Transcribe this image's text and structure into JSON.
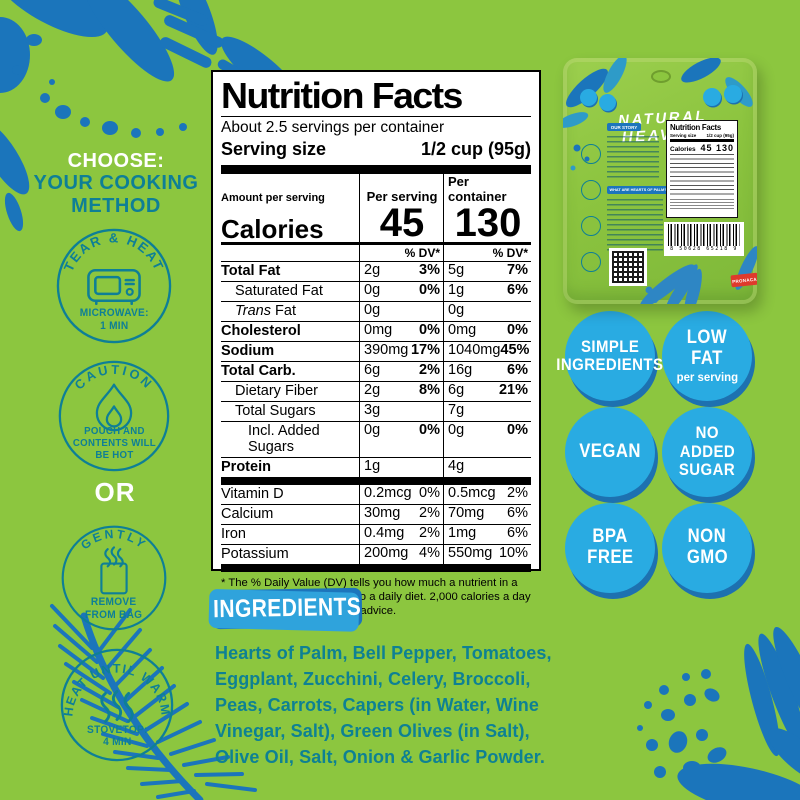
{
  "colors": {
    "background_green": "#8CC63F",
    "decor_blue": "#1B75BB",
    "teal": "#0E7F96",
    "badge_cyan": "#29ABE2",
    "badge_shadow_blue": "#1D71B0",
    "ingredients_badge_blue": "#1C75BC",
    "tag_red": "#DF3A2C"
  },
  "sidebar": {
    "choose": "CHOOSE:",
    "method1": "YOUR COOKING",
    "method2": "METHOD",
    "or": "OR",
    "steps": [
      {
        "arc": "TEAR & HEAT",
        "icon": "microwave",
        "caption": "MICROWAVE:\n1 MIN"
      },
      {
        "arc": "CAUTION",
        "icon": "flame",
        "caption": "POUCH AND\nCONTENTS WILL\nBE HOT"
      },
      {
        "arc": "GENTLY",
        "icon": "bag-steam",
        "caption": "REMOVE\nFROM BAG"
      },
      {
        "arc": "HEAT UNTIL WARM",
        "icon": "steam",
        "caption": "STOVETOP:\n4 MIN"
      }
    ]
  },
  "label": {
    "title": "Nutrition Facts",
    "servings": "About 2.5 servings per container",
    "ss_label": "Serving size",
    "ss_value": "1/2 cup (95g)",
    "amount_label": "Amount per serving",
    "col1": "Per serving",
    "col2": "Per container",
    "calories_label": "Calories",
    "cal1": "45",
    "cal2": "130",
    "dv_header": "% DV*",
    "rows": [
      {
        "name": "Total Fat",
        "b": 1,
        "i": 0,
        "a1": "2g",
        "d1": "3%",
        "a2": "5g",
        "d2": "7%"
      },
      {
        "name": "Saturated Fat",
        "b": 0,
        "i": 1,
        "a1": "0g",
        "d1": "0%",
        "a2": "1g",
        "d2": "6%"
      },
      {
        "name": "Trans Fat",
        "b": 0,
        "i": 1,
        "it": 1,
        "a1": "0g",
        "d1": "",
        "a2": "0g",
        "d2": ""
      },
      {
        "name": "Cholesterol",
        "b": 1,
        "i": 0,
        "a1": "0mg",
        "d1": "0%",
        "a2": "0mg",
        "d2": "0%"
      },
      {
        "name": "Sodium",
        "b": 1,
        "i": 0,
        "a1": "390mg",
        "d1": "17%",
        "a2": "1040mg",
        "d2": "45%"
      },
      {
        "name": "Total Carb.",
        "b": 1,
        "i": 0,
        "a1": "6g",
        "d1": "2%",
        "a2": "16g",
        "d2": "6%"
      },
      {
        "name": "Dietary Fiber",
        "b": 0,
        "i": 1,
        "a1": "2g",
        "d1": "8%",
        "a2": "6g",
        "d2": "21%"
      },
      {
        "name": "Total Sugars",
        "b": 0,
        "i": 1,
        "a1": "3g",
        "d1": "",
        "a2": "7g",
        "d2": ""
      },
      {
        "name": "Incl. Added Sugars",
        "b": 0,
        "i": 2,
        "a1": "0g",
        "d1": "0%",
        "a2": "0g",
        "d2": "0%"
      },
      {
        "name": "Protein",
        "b": 1,
        "i": 0,
        "a1": "1g",
        "d1": "",
        "a2": "4g",
        "d2": ""
      }
    ],
    "vitamins": [
      {
        "name": "Vitamin D",
        "a1": "0.2mcg",
        "d1": "0%",
        "a2": "0.5mcg",
        "d2": "2%"
      },
      {
        "name": "Calcium",
        "a1": "30mg",
        "d1": "2%",
        "a2": "70mg",
        "d2": "6%"
      },
      {
        "name": "Iron",
        "a1": "0.4mg",
        "d1": "2%",
        "a2": "1mg",
        "d2": "6%"
      },
      {
        "name": "Potassium",
        "a1": "200mg",
        "d1": "4%",
        "a2": "550mg",
        "d2": "10%"
      }
    ],
    "footnote": "* The % Daily Value (DV) tells you how much a nutrient in a serving of food contributes to a daily diet. 2,000 calories a day is used for general nutrition advice."
  },
  "badges": [
    {
      "lines": [
        "SIMPLE",
        "INGREDIENTS"
      ]
    },
    {
      "lines": [
        "LOW",
        "FAT"
      ],
      "big": true,
      "sub": "per serving"
    },
    {
      "lines": [
        "VEGAN"
      ],
      "big": true
    },
    {
      "lines": [
        "NO",
        "ADDED",
        "SUGAR"
      ]
    },
    {
      "lines": [
        "BPA",
        "FREE"
      ],
      "big": true
    },
    {
      "lines": [
        "NON",
        "GMO"
      ],
      "big": true
    }
  ],
  "ingredients": {
    "title": "INGREDIENTS",
    "text": "Hearts of Palm, Bell Pepper, Tomatoes, Eggplant, Zucchini, Celery, Broccoli, Peas, Carrots, Capers (in Water, Wine Vinegar, Salt), Green Olives (in Salt), Olive Oil, Salt, Onion & Garlic Powder."
  },
  "pouch": {
    "brand1": "NATURAL",
    "brand2": "HEAVEN.",
    "story_label": "OUR STORY",
    "palm_label": "WHAT ARE HEARTS OF PALM?",
    "nf_title": "Nutrition Facts",
    "nf_serving_label": "Serving size",
    "nf_serving_value": "1/2 cup (95g)",
    "nf_calories_label": "Calories",
    "nf_calories": "45 130",
    "barcode": "8 50628 65218 9",
    "tag": "PRONACA"
  }
}
